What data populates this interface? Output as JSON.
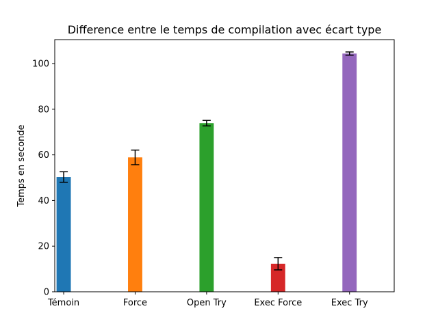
{
  "chart_data": {
    "type": "bar",
    "title": "Difference entre le temps de compilation avec écart type",
    "xlabel": "",
    "ylabel": "Temps en seconde",
    "categories": [
      "Témoin",
      "Force",
      "Open Try",
      "Exec Force",
      "Exec Try"
    ],
    "values": [
      50.3,
      58.9,
      73.9,
      12.3,
      104.4
    ],
    "errors": [
      2.3,
      3.2,
      1.2,
      2.7,
      0.7
    ],
    "colors": [
      "#1f77b4",
      "#ff7f0e",
      "#2ca02c",
      "#d62728",
      "#9467bd"
    ],
    "ylim": [
      0,
      110.5
    ],
    "yticks": [
      0,
      20,
      40,
      60,
      80,
      100
    ],
    "grid": false,
    "legend": "none"
  }
}
